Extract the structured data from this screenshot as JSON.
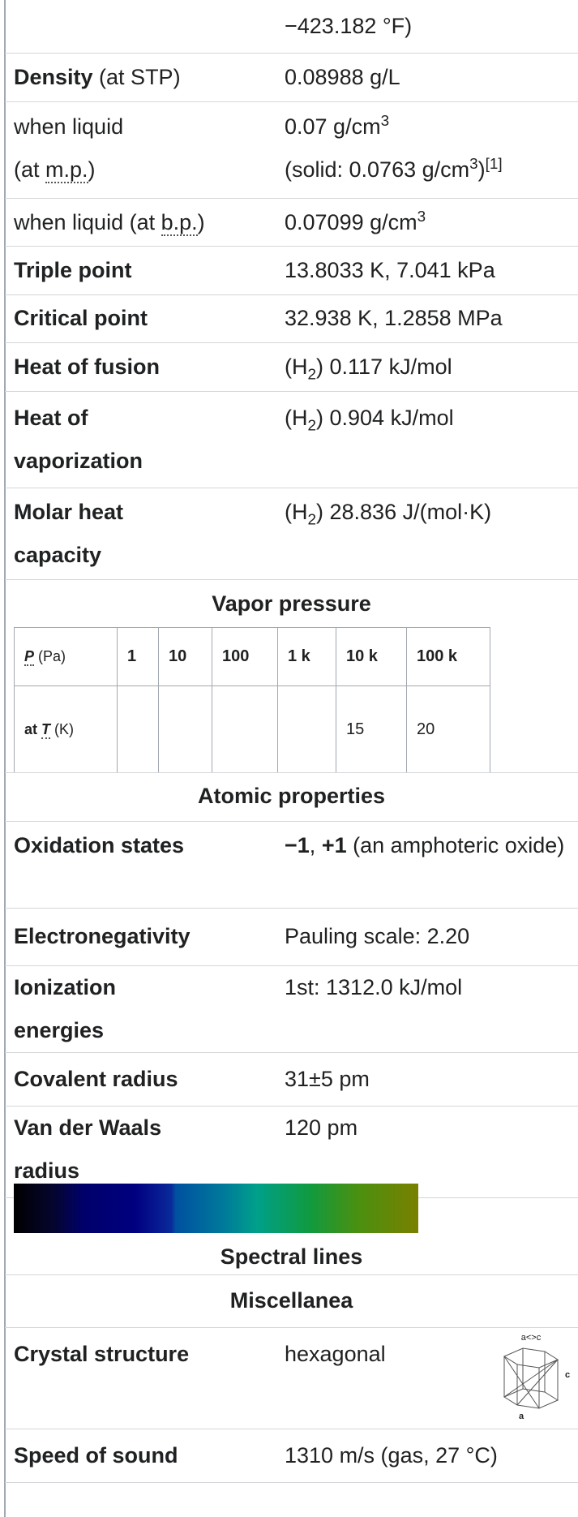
{
  "rows": [
    {
      "value": [
        "−423.182 °F)"
      ]
    },
    {
      "label": [
        "Density",
        " (at STP)"
      ],
      "value": [
        "0.08988 g/L"
      ]
    },
    {
      "label": [
        "when liquid",
        "(at ",
        "m.p.",
        ")"
      ],
      "value": [
        "0.07 g/cm",
        "3",
        "(solid: 0.0763 g/cm",
        "3",
        ")",
        "[1]"
      ]
    },
    {
      "label": [
        "when liquid (at ",
        "b.p.",
        ")"
      ],
      "value": [
        "0.07099 g/cm",
        "3"
      ]
    },
    {
      "label": [
        "Triple point"
      ],
      "value": [
        "13.8033 K, 7.041 kPa"
      ]
    },
    {
      "label": [
        "Critical point"
      ],
      "value": [
        "32.938 K, 1.2858 MPa"
      ]
    },
    {
      "label": [
        "Heat of fusion"
      ],
      "value": [
        "(H",
        "2",
        ") 0.117 kJ/mol"
      ]
    },
    {
      "label": [
        "Heat of",
        "vaporization"
      ],
      "value": [
        "(H",
        "2",
        ") 0.904 kJ/mol"
      ]
    },
    {
      "label": [
        "Molar heat",
        "capacity"
      ],
      "value": [
        "(H",
        "2",
        ") 28.836 J/(mol·K)"
      ]
    }
  ],
  "vapor_pressure": {
    "title": "Vapor pressure",
    "pressure": {
      "label": [
        "P",
        " (Pa)"
      ],
      "values": [
        "1",
        "10",
        "100",
        "1 k",
        "10 k",
        "100 k"
      ]
    },
    "temperature": {
      "label": [
        "at ",
        "T",
        " (K)"
      ],
      "values": [
        null,
        null,
        null,
        null,
        15,
        20
      ]
    }
  },
  "atomic": {
    "title": "Atomic properties",
    "rows": [
      {
        "label": [
          "Oxidation states"
        ],
        "value": [
          "−1",
          ", ",
          "+1",
          " (an amphoteric oxide)"
        ]
      },
      {
        "label": [
          "Electronegativity"
        ],
        "value": [
          "Pauling scale: 2.20"
        ]
      },
      {
        "label": [
          "Ionization",
          "energies"
        ],
        "value": [
          "1st: 1312.0 kJ/mol"
        ]
      },
      {
        "label": [
          "Covalent radius"
        ],
        "value": [
          "31±5 pm"
        ]
      },
      {
        "label": [
          "Van der Waals",
          "radius"
        ],
        "value": [
          "120 pm"
        ]
      }
    ]
  },
  "spectral_lines": "Spectral lines",
  "misc": {
    "title": "Miscellanea",
    "rows": [
      {
        "label": [
          "Crystal structure"
        ],
        "value": [
          "hexagonal"
        ],
        "icon_labels": [
          "a<>c",
          "c",
          "a"
        ]
      },
      {
        "label": [
          "Speed of sound"
        ],
        "value": [
          "1310 m/s (gas, 27 °C)"
        ]
      }
    ]
  }
}
